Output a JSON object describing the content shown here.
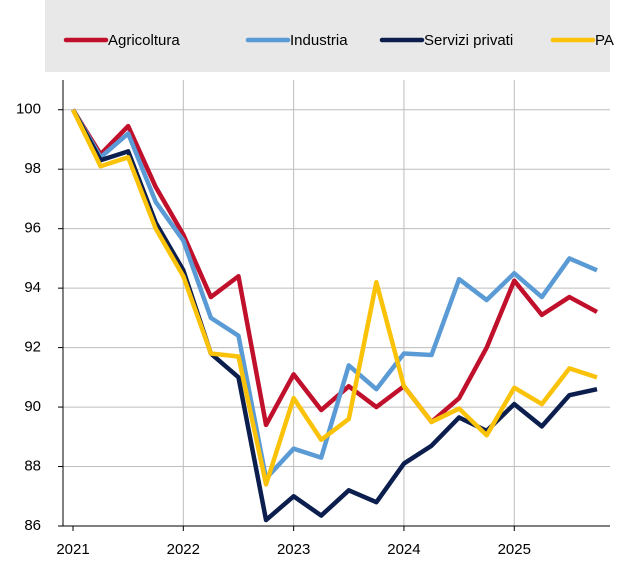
{
  "chart_data": {
    "type": "line",
    "x": [
      2021,
      2021.25,
      2021.5,
      2021.75,
      2022,
      2022.25,
      2022.5,
      2022.75,
      2023,
      2023.25,
      2023.5,
      2023.75,
      2024,
      2024.25,
      2024.5,
      2024.75,
      2025,
      2025.25,
      2025.5,
      2025.75
    ],
    "xlim": [
      2021,
      2025.75
    ],
    "xticks": [
      2021,
      2022,
      2023,
      2024,
      2025
    ],
    "ylim": [
      86,
      101
    ],
    "yticks": [
      86,
      88,
      90,
      92,
      94,
      96,
      98,
      100
    ],
    "grid": true,
    "legend": "top",
    "series": [
      {
        "name": "Agricoltura",
        "color": "#c0102b",
        "values": [
          100,
          98.5,
          99.45,
          97.4,
          95.8,
          93.7,
          94.4,
          89.4,
          91.1,
          89.9,
          90.7,
          90.0,
          90.7,
          89.5,
          90.3,
          92.0,
          94.25,
          93.1,
          93.7,
          93.2
        ]
      },
      {
        "name": "Industria",
        "color": "#5b9bd5",
        "values": [
          100,
          98.4,
          99.2,
          96.9,
          95.6,
          93.0,
          92.4,
          87.6,
          88.6,
          88.3,
          91.4,
          90.6,
          91.8,
          91.75,
          94.3,
          93.6,
          94.5,
          93.7,
          95.0,
          94.6
        ]
      },
      {
        "name": "Servizi privati",
        "color": "#0c1e4e",
        "values": [
          100,
          98.3,
          98.6,
          96.2,
          94.6,
          91.8,
          91.0,
          86.2,
          87.0,
          86.35,
          87.2,
          86.8,
          88.1,
          88.7,
          89.65,
          89.2,
          90.1,
          89.35,
          90.4,
          90.6
        ]
      },
      {
        "name": "PA",
        "color": "#fbc20a",
        "values": [
          100,
          98.1,
          98.4,
          96.0,
          94.4,
          91.8,
          91.7,
          87.4,
          90.3,
          88.9,
          89.6,
          94.2,
          90.7,
          89.5,
          89.95,
          89.05,
          90.65,
          90.1,
          91.3,
          91.0
        ]
      }
    ]
  }
}
